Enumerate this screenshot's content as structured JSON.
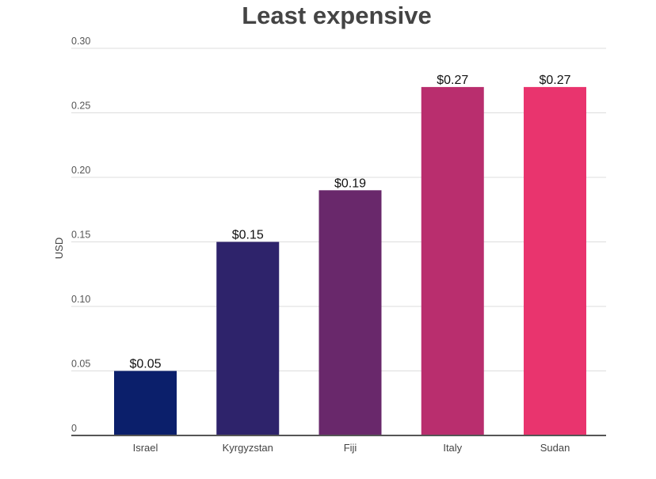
{
  "chart_data": {
    "type": "bar",
    "title": "Least expensive",
    "ylabel": "USD",
    "xlabel": "",
    "categories": [
      "Israel",
      "Kyrgyzstan",
      "Fiji",
      "Italy",
      "Sudan"
    ],
    "values": [
      0.05,
      0.15,
      0.19,
      0.27,
      0.27
    ],
    "data_labels": [
      "$0.05",
      "$0.15",
      "$0.19",
      "$0.27",
      "$0.27"
    ],
    "bar_colors": [
      "#0b1f6b",
      "#2e236b",
      "#69286b",
      "#b92e6e",
      "#e9346e"
    ],
    "yticks": [
      0,
      0.05,
      0.1,
      0.15,
      0.2,
      0.25,
      0.3
    ],
    "ytick_labels": [
      "0",
      "0.05",
      "0.10",
      "0.15",
      "0.20",
      "0.25",
      "0.30"
    ],
    "ylim": [
      0,
      0.3
    ],
    "grid": true,
    "legend": "none"
  }
}
